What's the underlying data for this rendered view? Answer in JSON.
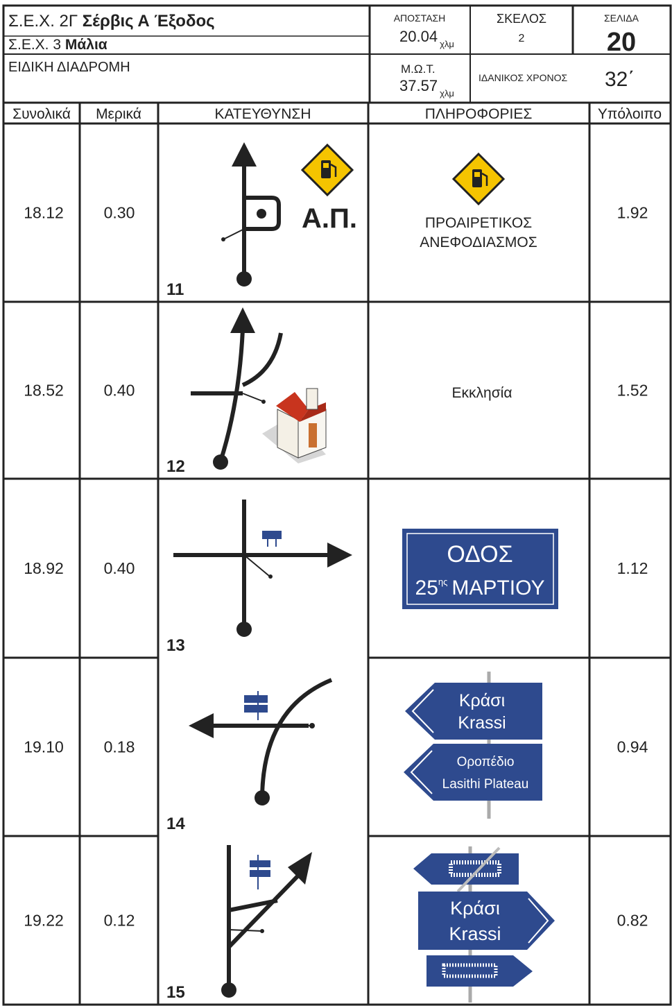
{
  "header": {
    "line1_code": "Σ.Ε.Χ. 2Γ",
    "line1_name": "Σέρβις Α Έξοδος",
    "line2_code": "Σ.Ε.Χ. 3",
    "line2_name": "Μάλια",
    "line3": "ΕΙΔΙΚΗ ΔΙΑΔΡΟΜΗ",
    "distance_label": "ΑΠΟΣΤΑΣΗ",
    "distance_value": "20.04",
    "distance_unit": "χλμ",
    "leg_label": "ΣΚΕΛΟΣ",
    "leg_value": "2",
    "page_label": "ΣΕΛΙΔΑ",
    "page_value": "20",
    "mot_label": "Μ.Ω.Τ.",
    "mot_value": "37.57",
    "mot_unit": "χλμ",
    "ideal_time_label": "ΙΔΑΝΙΚΟΣ ΧΡΟΝΟΣ",
    "ideal_time_value": "32΄"
  },
  "columns": [
    "Συνολικά",
    "Μερικά",
    "ΚΑΤΕΥΘΥΝΣΗ",
    "ΠΛΗΡΟΦΟΡΙΕΣ",
    "Υπόλοιπο"
  ],
  "rows": [
    {
      "total": "18.12",
      "partial": "0.30",
      "number": "11",
      "remaining": "1.92",
      "diagram_label": "Α.Π.",
      "info": [
        "ΠΡΟΑΙΡΕΤΙΚΟΣ",
        "ΑΝΕΦΟΔΙΑΣΜΟΣ"
      ]
    },
    {
      "total": "18.52",
      "partial": "0.40",
      "number": "12",
      "remaining": "1.52",
      "info": [
        "Εκκλησία"
      ]
    },
    {
      "total": "18.92",
      "partial": "0.40",
      "number": "13",
      "remaining": "1.12",
      "info": [
        "ΟΔΟΣ",
        "25",
        "ης",
        "ΜΑΡΤΙΟΥ"
      ]
    },
    {
      "total": "19.10",
      "partial": "0.18",
      "number": "14",
      "remaining": "0.94",
      "info": [
        "Κράσι",
        "Krassi",
        "Οροπέδιο",
        "Lasithi Plateau"
      ]
    },
    {
      "total": "19.22",
      "partial": "0.12",
      "number": "15",
      "remaining": "0.82",
      "info": [
        "Κράσι",
        "Krassi"
      ]
    }
  ]
}
